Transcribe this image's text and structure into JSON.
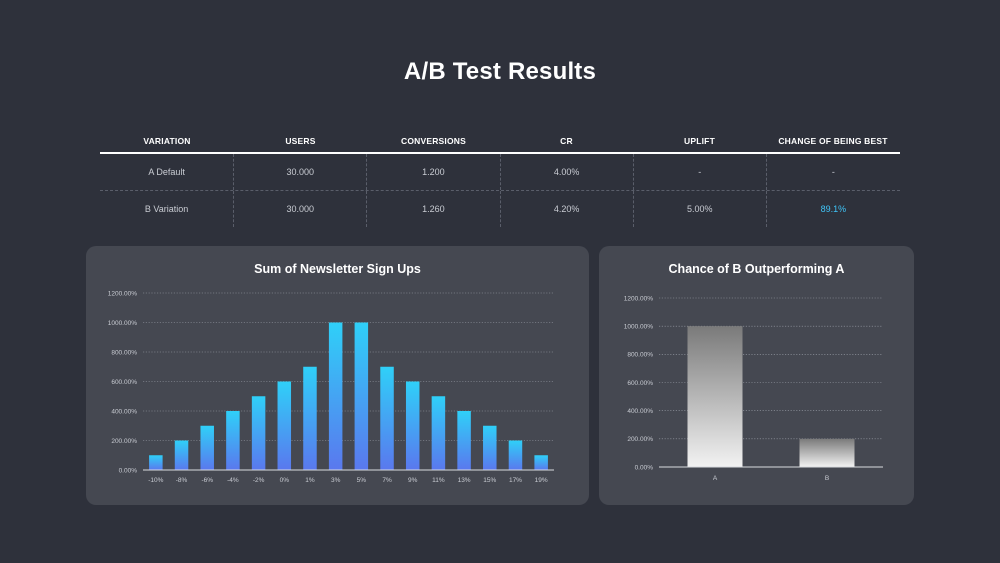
{
  "page": {
    "title": "A/B Test Results"
  },
  "table": {
    "headers": [
      "VARIATION",
      "USERS",
      "CONVERSIONS",
      "CR",
      "UPLIFT",
      "CHANGE OF BEING BEST"
    ],
    "rows": [
      [
        "A Default",
        "30.000",
        "1.200",
        "4.00%",
        "-",
        "-"
      ],
      [
        "B Variation",
        "30.000",
        "1.260",
        "4.20%",
        "5.00%",
        "89.1%"
      ]
    ],
    "highlight_color": "#3fc4f7"
  },
  "chart_data": [
    {
      "type": "bar",
      "title": "Sum of Newsletter Sign Ups",
      "categories": [
        "-10%",
        "-8%",
        "-6%",
        "-4%",
        "-2%",
        "0%",
        "1%",
        "3%",
        "5%",
        "7%",
        "9%",
        "11%",
        "13%",
        "15%",
        "17%",
        "19%"
      ],
      "values": [
        100,
        200,
        300,
        400,
        500,
        600,
        700,
        1000,
        1000,
        700,
        600,
        500,
        400,
        300,
        200,
        100
      ],
      "yticks": [
        "0.00%",
        "200.00%",
        "400.00%",
        "600.00%",
        "800.00%",
        "1000.00%",
        "1200.00%"
      ],
      "ylim": [
        0,
        1200
      ],
      "grid": true,
      "colors": {
        "bar_top": "#2fd0f8",
        "bar_bottom": "#5a78ee"
      }
    },
    {
      "type": "bar",
      "title": "Chance of B Outperforming A",
      "categories": [
        "A",
        "B"
      ],
      "values": [
        1000,
        200
      ],
      "yticks": [
        "0.00%",
        "200.00%",
        "400.00%",
        "600.00%",
        "800.00%",
        "1000.00%",
        "1200.00%"
      ],
      "ylim": [
        0,
        1200
      ],
      "grid": true,
      "colors": {
        "bar_top": "#7a7a7a",
        "bar_bottom": "#f2f2f2"
      }
    }
  ]
}
